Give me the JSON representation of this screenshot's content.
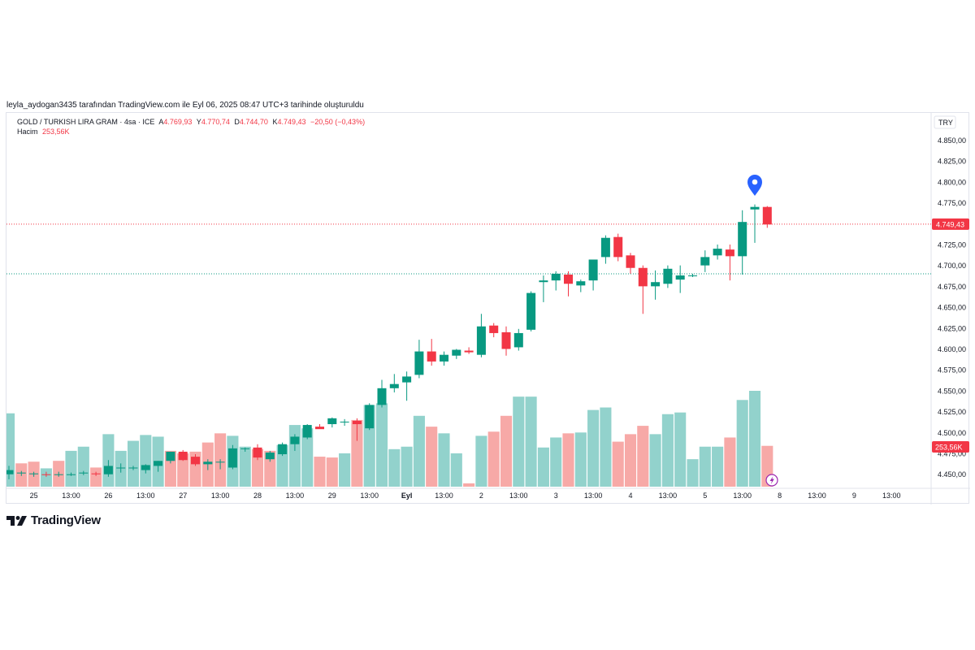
{
  "caption": "leyla_aydogan3435 tarafından TradingView.com ile Eyl 06, 2025 08:47 UTC+3 tarihinde oluşturuldu",
  "legend": {
    "symbol": "GOLD / TURKISH LIRA GRAM · 4sa · ICE",
    "open_label": "A",
    "open": "4.769,93",
    "high_label": "Y",
    "high": "4.770,74",
    "low_label": "D",
    "low": "4.744,70",
    "close_label": "K",
    "close": "4.749,43",
    "change": "−20,50 (−0,43%)",
    "volume_label": "Hacim",
    "volume": "253,56K"
  },
  "logo_text": "TradingView",
  "colors": {
    "up": "#089981",
    "down": "#f23645",
    "up_vol": "#92d2cc",
    "down_vol": "#f7a9a7",
    "marker": "#2962ff"
  },
  "chart_data": {
    "type": "candlestick",
    "currency": "TRY",
    "ylim": [
      4440,
      4865
    ],
    "y_ticks": [
      {
        "v": 4850,
        "label": "4.850,00"
      },
      {
        "v": 4825,
        "label": "4.825,00"
      },
      {
        "v": 4800,
        "label": "4.800,00"
      },
      {
        "v": 4775,
        "label": "4.775,00"
      },
      {
        "v": 4725,
        "label": "4.725,00"
      },
      {
        "v": 4700,
        "label": "4.700,00"
      },
      {
        "v": 4675,
        "label": "4.675,00"
      },
      {
        "v": 4650,
        "label": "4.650,00"
      },
      {
        "v": 4625,
        "label": "4.625,00"
      },
      {
        "v": 4600,
        "label": "4.600,00"
      },
      {
        "v": 4575,
        "label": "4.575,00"
      },
      {
        "v": 4550,
        "label": "4.550,00"
      },
      {
        "v": 4525,
        "label": "4.525,00"
      },
      {
        "v": 4500,
        "label": "4.500,00"
      },
      {
        "v": 4475,
        "label": "4.475,00"
      },
      {
        "v": 4450,
        "label": "4.450,00"
      }
    ],
    "x_ticks": [
      {
        "i": 2,
        "label": "25"
      },
      {
        "i": 5,
        "label": "13:00"
      },
      {
        "i": 8,
        "label": "26"
      },
      {
        "i": 11,
        "label": "13:00"
      },
      {
        "i": 14,
        "label": "27"
      },
      {
        "i": 17,
        "label": "13:00"
      },
      {
        "i": 20,
        "label": "28"
      },
      {
        "i": 23,
        "label": "13:00"
      },
      {
        "i": 26,
        "label": "29"
      },
      {
        "i": 29,
        "label": "13:00"
      },
      {
        "i": 32,
        "label": "Eyl"
      },
      {
        "i": 35,
        "label": "13:00"
      },
      {
        "i": 38,
        "label": "2"
      },
      {
        "i": 41,
        "label": "13:00"
      },
      {
        "i": 44,
        "label": "3"
      },
      {
        "i": 47,
        "label": "13:00"
      },
      {
        "i": 50,
        "label": "4"
      },
      {
        "i": 53,
        "label": "13:00"
      },
      {
        "i": 56,
        "label": "5"
      },
      {
        "i": 59,
        "label": "13:00"
      },
      {
        "i": 62,
        "label": "8"
      },
      {
        "i": 65,
        "label": "13:00"
      },
      {
        "i": 68,
        "label": "9"
      },
      {
        "i": 71,
        "label": "13:00"
      }
    ],
    "last_price": {
      "value": 4749.43,
      "label": "4.749,43"
    },
    "ref_line": 4690,
    "volume_label": "253,56K",
    "candles": [
      {
        "o": 4450,
        "h": 4460,
        "l": 4444,
        "c": 4455
      },
      {
        "o": 4451,
        "h": 4454,
        "l": 4448,
        "c": 4452
      },
      {
        "o": 4450,
        "h": 4453,
        "l": 4447,
        "c": 4451
      },
      {
        "o": 4450,
        "h": 4453,
        "l": 4447,
        "c": 4449
      },
      {
        "o": 4450,
        "h": 4453,
        "l": 4447,
        "c": 4450
      },
      {
        "o": 4450,
        "h": 4452,
        "l": 4448,
        "c": 4450
      },
      {
        "o": 4451,
        "h": 4454,
        "l": 4449,
        "c": 4452
      },
      {
        "o": 4451,
        "h": 4453,
        "l": 4448,
        "c": 4450
      },
      {
        "o": 4450,
        "h": 4467,
        "l": 4447,
        "c": 4460
      },
      {
        "o": 4457,
        "h": 4463,
        "l": 4452,
        "c": 4458
      },
      {
        "o": 4458,
        "h": 4460,
        "l": 4455,
        "c": 4458
      },
      {
        "o": 4455,
        "h": 4462,
        "l": 4451,
        "c": 4461
      },
      {
        "o": 4460,
        "h": 4466,
        "l": 4453,
        "c": 4466
      },
      {
        "o": 4466,
        "h": 4477,
        "l": 4463,
        "c": 4477
      },
      {
        "o": 4477,
        "h": 4479,
        "l": 4466,
        "c": 4467
      },
      {
        "o": 4471,
        "h": 4474,
        "l": 4460,
        "c": 4462
      },
      {
        "o": 4462,
        "h": 4468,
        "l": 4455,
        "c": 4465
      },
      {
        "o": 4465,
        "h": 4468,
        "l": 4456,
        "c": 4465
      },
      {
        "o": 4458,
        "h": 4485,
        "l": 4456,
        "c": 4481
      },
      {
        "o": 4480,
        "h": 4482,
        "l": 4477,
        "c": 4481
      },
      {
        "o": 4482,
        "h": 4486,
        "l": 4467,
        "c": 4470
      },
      {
        "o": 4468,
        "h": 4478,
        "l": 4465,
        "c": 4476
      },
      {
        "o": 4474,
        "h": 4488,
        "l": 4472,
        "c": 4486
      },
      {
        "o": 4486,
        "h": 4498,
        "l": 4478,
        "c": 4495
      },
      {
        "o": 4494,
        "h": 4510,
        "l": 4492,
        "c": 4509
      },
      {
        "o": 4507,
        "h": 4510,
        "l": 4505,
        "c": 4504
      },
      {
        "o": 4510,
        "h": 4518,
        "l": 4506,
        "c": 4517
      },
      {
        "o": 4512,
        "h": 4516,
        "l": 4508,
        "c": 4513
      },
      {
        "o": 4514,
        "h": 4517,
        "l": 4490,
        "c": 4510
      },
      {
        "o": 4505,
        "h": 4535,
        "l": 4503,
        "c": 4533
      },
      {
        "o": 4533,
        "h": 4563,
        "l": 4530,
        "c": 4553
      },
      {
        "o": 4553,
        "h": 4570,
        "l": 4548,
        "c": 4558
      },
      {
        "o": 4560,
        "h": 4573,
        "l": 4538,
        "c": 4567
      },
      {
        "o": 4569,
        "h": 4611,
        "l": 4565,
        "c": 4597
      },
      {
        "o": 4597,
        "h": 4612,
        "l": 4580,
        "c": 4585
      },
      {
        "o": 4585,
        "h": 4597,
        "l": 4580,
        "c": 4593
      },
      {
        "o": 4592,
        "h": 4600,
        "l": 4588,
        "c": 4599
      },
      {
        "o": 4598,
        "h": 4602,
        "l": 4594,
        "c": 4596
      },
      {
        "o": 4593,
        "h": 4642,
        "l": 4590,
        "c": 4627
      },
      {
        "o": 4628,
        "h": 4631,
        "l": 4614,
        "c": 4619
      },
      {
        "o": 4620,
        "h": 4627,
        "l": 4592,
        "c": 4600
      },
      {
        "o": 4602,
        "h": 4624,
        "l": 4598,
        "c": 4619
      },
      {
        "o": 4623,
        "h": 4669,
        "l": 4621,
        "c": 4667
      },
      {
        "o": 4680,
        "h": 4688,
        "l": 4656,
        "c": 4682
      },
      {
        "o": 4682,
        "h": 4693,
        "l": 4670,
        "c": 4690
      },
      {
        "o": 4689,
        "h": 4693,
        "l": 4663,
        "c": 4678
      },
      {
        "o": 4676,
        "h": 4683,
        "l": 4668,
        "c": 4681
      },
      {
        "o": 4682,
        "h": 4704,
        "l": 4670,
        "c": 4707
      },
      {
        "o": 4710,
        "h": 4736,
        "l": 4702,
        "c": 4733
      },
      {
        "o": 4734,
        "h": 4738,
        "l": 4705,
        "c": 4710
      },
      {
        "o": 4712,
        "h": 4715,
        "l": 4690,
        "c": 4697
      },
      {
        "o": 4697,
        "h": 4700,
        "l": 4642,
        "c": 4675
      },
      {
        "o": 4675,
        "h": 4694,
        "l": 4659,
        "c": 4680
      },
      {
        "o": 4678,
        "h": 4700,
        "l": 4673,
        "c": 4696
      },
      {
        "o": 4683,
        "h": 4700,
        "l": 4667,
        "c": 4688
      },
      {
        "o": 4687,
        "h": 4690,
        "l": 4686,
        "c": 4688
      },
      {
        "o": 4700,
        "h": 4718,
        "l": 4692,
        "c": 4710
      },
      {
        "o": 4712,
        "h": 4725,
        "l": 4707,
        "c": 4720
      },
      {
        "o": 4719,
        "h": 4725,
        "l": 4682,
        "c": 4711
      },
      {
        "o": 4711,
        "h": 4766,
        "l": 4689,
        "c": 4752
      },
      {
        "o": 4767,
        "h": 4773,
        "l": 4727,
        "c": 4770
      },
      {
        "o": 4770,
        "h": 4771,
        "l": 4745,
        "c": 4749
      }
    ],
    "volumes": [
      {
        "v": 88,
        "up": true
      },
      {
        "v": 28,
        "up": false
      },
      {
        "v": 30,
        "up": false
      },
      {
        "v": 22,
        "up": true
      },
      {
        "v": 31,
        "up": false
      },
      {
        "v": 43,
        "up": true
      },
      {
        "v": 48,
        "up": true
      },
      {
        "v": 23,
        "up": false
      },
      {
        "v": 63,
        "up": true
      },
      {
        "v": 43,
        "up": true
      },
      {
        "v": 55,
        "up": true
      },
      {
        "v": 62,
        "up": true
      },
      {
        "v": 60,
        "up": true
      },
      {
        "v": 43,
        "up": false
      },
      {
        "v": 40,
        "up": false
      },
      {
        "v": 42,
        "up": false
      },
      {
        "v": 53,
        "up": false
      },
      {
        "v": 64,
        "up": false
      },
      {
        "v": 61,
        "up": true
      },
      {
        "v": 48,
        "up": true
      },
      {
        "v": 45,
        "up": false
      },
      {
        "v": 43,
        "up": false
      },
      {
        "v": 50,
        "up": true
      },
      {
        "v": 74,
        "up": true
      },
      {
        "v": 70,
        "up": true
      },
      {
        "v": 36,
        "up": false
      },
      {
        "v": 35,
        "up": false
      },
      {
        "v": 40,
        "up": true
      },
      {
        "v": 80,
        "up": false
      },
      {
        "v": 98,
        "up": true
      },
      {
        "v": 100,
        "up": true
      },
      {
        "v": 45,
        "up": true
      },
      {
        "v": 48,
        "up": true
      },
      {
        "v": 85,
        "up": true
      },
      {
        "v": 72,
        "up": false
      },
      {
        "v": 64,
        "up": true
      },
      {
        "v": 40,
        "up": true
      },
      {
        "v": 4,
        "up": false
      },
      {
        "v": 61,
        "up": true
      },
      {
        "v": 66,
        "up": false
      },
      {
        "v": 85,
        "up": false
      },
      {
        "v": 108,
        "up": true
      },
      {
        "v": 108,
        "up": true
      },
      {
        "v": 47,
        "up": true
      },
      {
        "v": 59,
        "up": true
      },
      {
        "v": 64,
        "up": false
      },
      {
        "v": 65,
        "up": true
      },
      {
        "v": 92,
        "up": true
      },
      {
        "v": 95,
        "up": true
      },
      {
        "v": 54,
        "up": false
      },
      {
        "v": 63,
        "up": false
      },
      {
        "v": 73,
        "up": false
      },
      {
        "v": 63,
        "up": true
      },
      {
        "v": 87,
        "up": true
      },
      {
        "v": 89,
        "up": true
      },
      {
        "v": 33,
        "up": true
      },
      {
        "v": 48,
        "up": true
      },
      {
        "v": 48,
        "up": true
      },
      {
        "v": 59,
        "up": false
      },
      {
        "v": 104,
        "up": true
      },
      {
        "v": 115,
        "up": true
      },
      {
        "v": 49,
        "up": false
      }
    ]
  }
}
